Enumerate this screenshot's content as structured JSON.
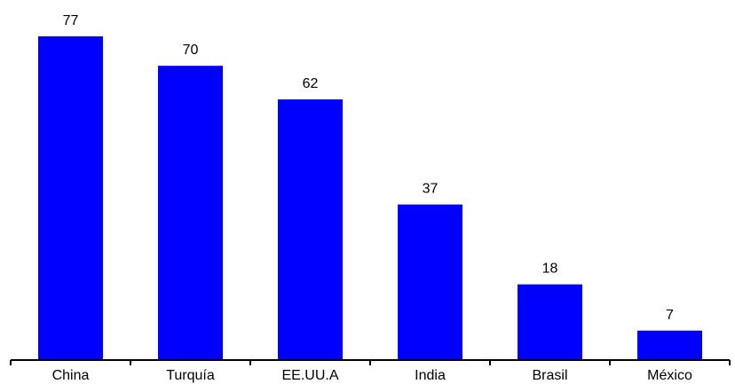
{
  "chart_data": {
    "type": "bar",
    "categories": [
      "China",
      "Turquía",
      "EE.UU.A",
      "India",
      "Brasil",
      "México"
    ],
    "values": [
      77,
      70,
      62,
      37,
      18,
      7
    ],
    "data_labels": [
      "77",
      "70",
      "62",
      "37",
      "18",
      "7"
    ],
    "title": "",
    "xlabel": "",
    "ylabel": "",
    "ylim": [
      0,
      77
    ],
    "grid": false,
    "legend": "none",
    "bar_color": "#0000FF",
    "axis_color": "#000000"
  }
}
